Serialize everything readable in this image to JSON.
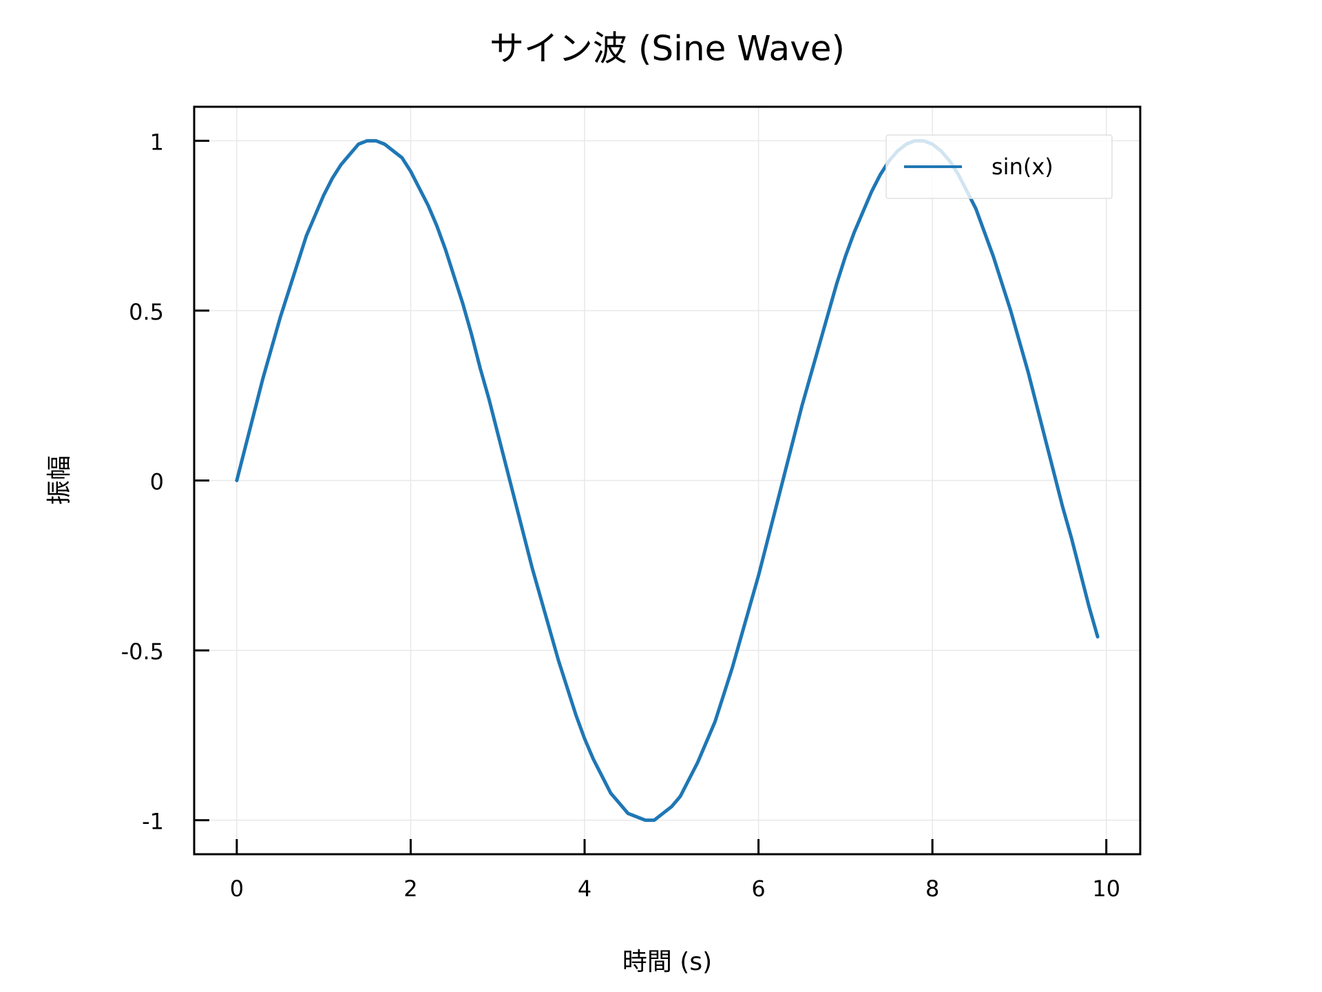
{
  "chart_data": {
    "type": "line",
    "title": "サイン波 (Sine Wave)",
    "x_label": "時間 (s)",
    "y_label": "振幅",
    "x": [
      0,
      0.1,
      0.2,
      0.3,
      0.4,
      0.5,
      0.6,
      0.7,
      0.8,
      0.9,
      1.0,
      1.1,
      1.2,
      1.3,
      1.4,
      1.5,
      1.6,
      1.7,
      1.8,
      1.9,
      2.0,
      2.1,
      2.2,
      2.3,
      2.4,
      2.5,
      2.6,
      2.7,
      2.8,
      2.9,
      3.0,
      3.1,
      3.2,
      3.3,
      3.4,
      3.5,
      3.6,
      3.7,
      3.8,
      3.9,
      4.0,
      4.1,
      4.2,
      4.3,
      4.4,
      4.5,
      4.6,
      4.7,
      4.8,
      4.9,
      5.0,
      5.1,
      5.2,
      5.3,
      5.4,
      5.5,
      5.6,
      5.7,
      5.8,
      5.9,
      6.0,
      6.1,
      6.2,
      6.3,
      6.4,
      6.5,
      6.6,
      6.7,
      6.8,
      6.9,
      7.0,
      7.1,
      7.2,
      7.3,
      7.4,
      7.5,
      7.6,
      7.7,
      7.8,
      7.9,
      8.0,
      8.1,
      8.2,
      8.3,
      8.4,
      8.5,
      8.6,
      8.7,
      8.8,
      8.9,
      9.0,
      9.1,
      9.2,
      9.3,
      9.4,
      9.5,
      9.6,
      9.7,
      9.8,
      9.9
    ],
    "series": [
      {
        "name": "sin(x)",
        "color": "#1f77b4",
        "values": [
          0,
          0.1,
          0.2,
          0.3,
          0.39,
          0.48,
          0.56,
          0.64,
          0.72,
          0.78,
          0.84,
          0.89,
          0.93,
          0.96,
          0.99,
          1.0,
          1.0,
          0.99,
          0.97,
          0.95,
          0.91,
          0.86,
          0.81,
          0.75,
          0.68,
          0.6,
          0.52,
          0.43,
          0.33,
          0.24,
          0.14,
          0.04,
          -0.06,
          -0.16,
          -0.26,
          -0.35,
          -0.44,
          -0.53,
          -0.61,
          -0.69,
          -0.76,
          -0.82,
          -0.87,
          -0.92,
          -0.95,
          -0.98,
          -0.99,
          -1.0,
          -1.0,
          -0.98,
          -0.96,
          -0.93,
          -0.88,
          -0.83,
          -0.77,
          -0.71,
          -0.63,
          -0.55,
          -0.46,
          -0.37,
          -0.28,
          -0.18,
          -0.08,
          0.02,
          0.12,
          0.22,
          0.31,
          0.4,
          0.49,
          0.58,
          0.66,
          0.73,
          0.79,
          0.85,
          0.9,
          0.94,
          0.97,
          0.99,
          1.0,
          1.0,
          0.99,
          0.97,
          0.94,
          0.9,
          0.85,
          0.8,
          0.73,
          0.66,
          0.58,
          0.5,
          0.41,
          0.32,
          0.22,
          0.12,
          0.02,
          -0.08,
          -0.17,
          -0.27,
          -0.37,
          -0.46
        ]
      }
    ],
    "xlim": [
      -0.49,
      10.39
    ],
    "xticks": [
      0,
      2,
      4,
      6,
      8,
      10
    ],
    "ylim": [
      -1.1,
      1.1
    ],
    "yticks": [
      -1,
      -0.5,
      0,
      0.5,
      1
    ],
    "grid": true,
    "legend": "upper right"
  }
}
